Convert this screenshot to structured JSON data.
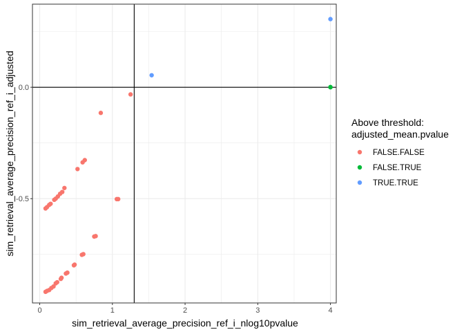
{
  "chart_data": {
    "type": "scatter",
    "title": "",
    "xlabel": "sim_retrieval_average_precision_ref_i_nlog10pvalue",
    "ylabel": "sim_retrieval_average_precision_ref_i_adjusted",
    "xlim": [
      -0.1,
      4.08
    ],
    "ylim": [
      -0.968,
      0.373
    ],
    "x_ticks": [
      0,
      1,
      2,
      3,
      4
    ],
    "x_tick_labels": [
      "0",
      "1",
      "2",
      "3",
      "4"
    ],
    "y_ticks": [
      -0.5,
      0.0
    ],
    "y_tick_labels": [
      "-0.5",
      "0.0"
    ],
    "reference_lines": {
      "vertical_x": 1.3,
      "horizontal_y": 0.0
    },
    "grid": true,
    "legend": {
      "title_line1": "Above threshold:",
      "title_line2": "adjusted_mean.pvalue",
      "position": "right",
      "entries": [
        "FALSE.FALSE",
        "FALSE.TRUE",
        "TRUE.TRUE"
      ]
    },
    "series": [
      {
        "name": "FALSE.FALSE",
        "color": "#F8766D",
        "points": [
          [
            0.08,
            -0.544
          ],
          [
            0.1,
            -0.538
          ],
          [
            0.13,
            -0.528
          ],
          [
            0.15,
            -0.523
          ],
          [
            0.2,
            -0.505
          ],
          [
            0.22,
            -0.5
          ],
          [
            0.25,
            -0.49
          ],
          [
            0.28,
            -0.478
          ],
          [
            0.31,
            -0.47
          ],
          [
            0.34,
            -0.452
          ],
          [
            0.52,
            -0.367
          ],
          [
            0.59,
            -0.337
          ],
          [
            0.62,
            -0.327
          ],
          [
            0.84,
            -0.115
          ],
          [
            1.06,
            -0.502
          ],
          [
            1.08,
            -0.502
          ],
          [
            1.25,
            -0.032
          ],
          [
            0.08,
            -0.918
          ],
          [
            0.1,
            -0.914
          ],
          [
            0.13,
            -0.91
          ],
          [
            0.16,
            -0.901
          ],
          [
            0.19,
            -0.894
          ],
          [
            0.22,
            -0.88
          ],
          [
            0.24,
            -0.875
          ],
          [
            0.29,
            -0.86
          ],
          [
            0.3,
            -0.855
          ],
          [
            0.36,
            -0.836
          ],
          [
            0.38,
            -0.832
          ],
          [
            0.47,
            -0.799
          ],
          [
            0.48,
            -0.796
          ],
          [
            0.58,
            -0.752
          ],
          [
            0.6,
            -0.749
          ],
          [
            0.75,
            -0.67
          ],
          [
            0.77,
            -0.668
          ]
        ]
      },
      {
        "name": "FALSE.TRUE",
        "color": "#00BA38",
        "points": [
          [
            4.0,
            0.0
          ],
          [
            4.0,
            0.001
          ]
        ]
      },
      {
        "name": "TRUE.TRUE",
        "color": "#619CFF",
        "points": [
          [
            1.54,
            0.054
          ],
          [
            4.0,
            0.306
          ]
        ]
      }
    ]
  }
}
